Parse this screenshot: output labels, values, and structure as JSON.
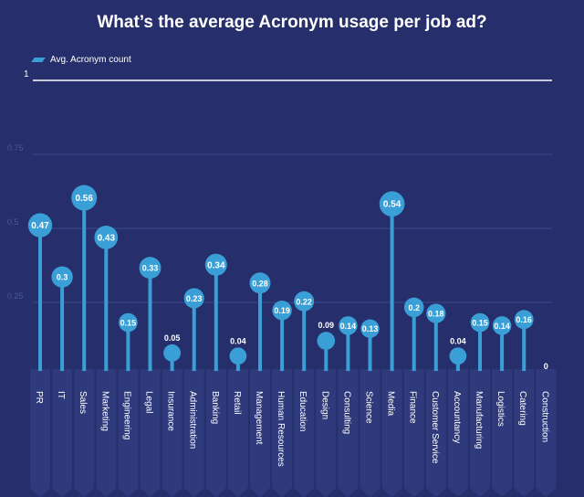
{
  "chart_data": {
    "type": "lollipop",
    "title": "What’s the average Acronym usage per job ad?",
    "legend": {
      "label": "Avg. Acronym count",
      "position": "top-left"
    },
    "ylim": [
      0,
      1
    ],
    "yticks": [
      {
        "value": 0.25,
        "label": "0.25"
      },
      {
        "value": 0.5,
        "label": "0.5"
      },
      {
        "value": 0.75,
        "label": "0.75"
      },
      {
        "value": 1,
        "label": "1"
      }
    ],
    "categories": [
      "PR",
      "IT",
      "Sales",
      "Marketing",
      "Engineering",
      "Legal",
      "Insurance",
      "Administration",
      "Banking",
      "Retail",
      "Management",
      "Human Resources",
      "Education",
      "Design",
      "Consulting",
      "Science",
      "Media",
      "Finance",
      "Customer Service",
      "Accountancy",
      "Manufacturing",
      "Logistics",
      "Catering",
      "Construction"
    ],
    "values": [
      0.47,
      0.3,
      0.56,
      0.43,
      0.15,
      0.33,
      0.05,
      0.23,
      0.34,
      0.04,
      0.28,
      0.19,
      0.22,
      0.09,
      0.14,
      0.13,
      0.54,
      0.2,
      0.18,
      0.04,
      0.15,
      0.14,
      0.16,
      0
    ],
    "value_labels": [
      "0.47",
      "0.3",
      "0.56",
      "0.43",
      "0.15",
      "0.33",
      "0.05",
      "0.23",
      "0.34",
      "0.04",
      "0.28",
      "0.19",
      "0.22",
      "0.09",
      "0.14",
      "0.13",
      "0.54",
      "0.2",
      "0.18",
      "0.04",
      "0.15",
      "0.14",
      "0.16",
      "0"
    ],
    "grid": true,
    "colors": {
      "background": "#262f6b",
      "marker": "#3a9fd6",
      "gridline": "#3a4a8e",
      "top_line": "#ffffff",
      "tick_text": "#4a5898",
      "category_band": "#2e3a7c"
    }
  }
}
